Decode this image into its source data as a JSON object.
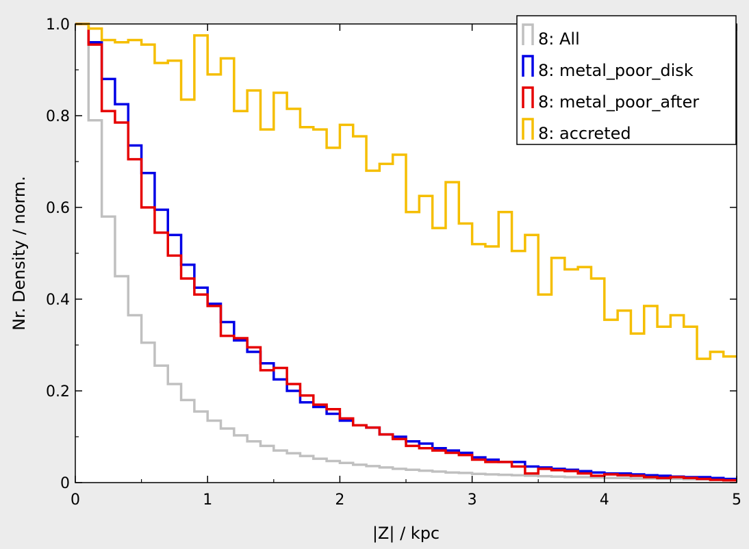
{
  "chart_data": {
    "type": "line",
    "xlabel": "|Z|  / kpc",
    "ylabel": "Nr. Density / norm.",
    "xlim": [
      0,
      5
    ],
    "ylim": [
      0,
      1.0
    ],
    "x_ticks": [
      "0",
      "1",
      "2",
      "3",
      "4",
      "5"
    ],
    "y_ticks": [
      "0",
      "0.2",
      "0.4",
      "0.6",
      "0.8",
      "1.0"
    ],
    "grid": false,
    "legend_position": "top-right",
    "bin_edges": [
      0.0,
      0.1,
      0.2,
      0.3,
      0.4,
      0.5,
      0.6,
      0.7,
      0.8,
      0.9,
      1.0,
      1.1,
      1.2,
      1.3,
      1.4,
      1.5,
      1.6,
      1.7,
      1.8,
      1.9,
      2.0,
      2.1,
      2.2,
      2.3,
      2.4,
      2.5,
      2.6,
      2.7,
      2.8,
      2.9,
      3.0,
      3.1,
      3.2,
      3.3,
      3.4,
      3.5,
      3.6,
      3.7,
      3.8,
      3.9,
      4.0,
      4.1,
      4.2,
      4.3,
      4.4,
      4.5,
      4.6,
      4.7,
      4.8,
      4.9,
      5.0
    ],
    "series": [
      {
        "name": "8: All",
        "color": "#c0c0c0",
        "values": [
          1.0,
          0.79,
          0.58,
          0.45,
          0.365,
          0.305,
          0.255,
          0.215,
          0.18,
          0.155,
          0.135,
          0.118,
          0.103,
          0.09,
          0.08,
          0.07,
          0.064,
          0.058,
          0.052,
          0.047,
          0.043,
          0.039,
          0.036,
          0.033,
          0.03,
          0.028,
          0.026,
          0.024,
          0.022,
          0.021,
          0.019,
          0.018,
          0.017,
          0.016,
          0.015,
          0.014,
          0.013,
          0.012,
          0.012,
          0.011,
          0.01,
          0.01,
          0.009,
          0.009,
          0.008,
          0.008,
          0.007,
          0.007,
          0.006,
          0.006
        ]
      },
      {
        "name": "8: metal_poor_disk",
        "color": "#0000e6",
        "values": [
          1.0,
          0.96,
          0.88,
          0.825,
          0.735,
          0.675,
          0.595,
          0.54,
          0.475,
          0.425,
          0.39,
          0.35,
          0.31,
          0.285,
          0.26,
          0.225,
          0.2,
          0.175,
          0.165,
          0.15,
          0.135,
          0.125,
          0.12,
          0.105,
          0.1,
          0.09,
          0.085,
          0.075,
          0.07,
          0.065,
          0.055,
          0.05,
          0.045,
          0.045,
          0.035,
          0.033,
          0.03,
          0.028,
          0.025,
          0.022,
          0.02,
          0.02,
          0.018,
          0.016,
          0.015,
          0.013,
          0.012,
          0.012,
          0.01,
          0.008
        ]
      },
      {
        "name": "8: metal_poor_after",
        "color": "#e60000",
        "values": [
          1.0,
          0.955,
          0.81,
          0.785,
          0.705,
          0.6,
          0.545,
          0.495,
          0.445,
          0.41,
          0.385,
          0.32,
          0.315,
          0.295,
          0.245,
          0.25,
          0.215,
          0.19,
          0.17,
          0.16,
          0.14,
          0.125,
          0.12,
          0.105,
          0.095,
          0.08,
          0.075,
          0.07,
          0.065,
          0.06,
          0.05,
          0.045,
          0.045,
          0.035,
          0.02,
          0.03,
          0.027,
          0.025,
          0.02,
          0.015,
          0.018,
          0.016,
          0.015,
          0.012,
          0.01,
          0.012,
          0.01,
          0.008,
          0.006,
          0.005
        ]
      },
      {
        "name": "8: accreted",
        "color": "#f5be00",
        "values": [
          1.0,
          0.99,
          0.965,
          0.96,
          0.965,
          0.955,
          0.915,
          0.92,
          0.835,
          0.975,
          0.89,
          0.925,
          0.81,
          0.855,
          0.77,
          0.85,
          0.815,
          0.775,
          0.77,
          0.73,
          0.78,
          0.755,
          0.68,
          0.695,
          0.715,
          0.59,
          0.625,
          0.555,
          0.655,
          0.565,
          0.52,
          0.515,
          0.59,
          0.505,
          0.54,
          0.41,
          0.49,
          0.465,
          0.47,
          0.445,
          0.355,
          0.375,
          0.325,
          0.385,
          0.34,
          0.365,
          0.34,
          0.27,
          0.285,
          0.275
        ]
      }
    ]
  }
}
